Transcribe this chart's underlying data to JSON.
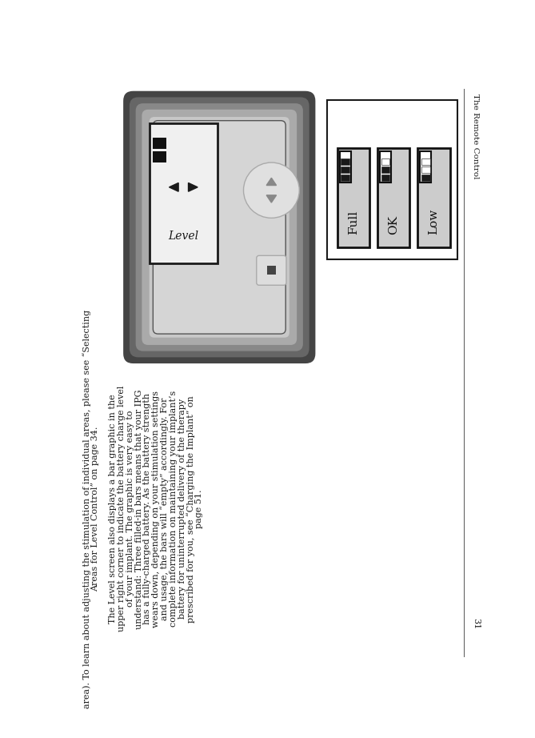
{
  "bg_color": "#ffffff",
  "page_number": "31",
  "header_text": "The Remote Control",
  "text_color": "#1a1a1a",
  "body_lines": [
    "area). To learn about adjusting the stimulation of individual areas, please see “Selecting",
    "Areas for Level Control” on page 34.",
    "",
    "The Level screen also displays a bar graphic in the",
    "upper right corner to indicate the battery charge level",
    "of your implant. The graphic is very easy to",
    "understand: Three filled-in bars means that your IPG",
    "has a fully-charged battery. As the battery strength",
    "wears down, depending on your stimulation settings",
    "and usage, the bars will “empty” accordingly. For",
    "complete information on maintaining your implant’s",
    "battery for uninterrupted delivery of the therapy",
    "prescribed for you, see “Charging the Implant” on",
    "page 51."
  ],
  "battery_labels": [
    "Full",
    "OK",
    "Low"
  ],
  "battery_filled": [
    3,
    2,
    1
  ],
  "light_gray": "#cccccc",
  "dark": "#1a1a1a",
  "white": "#ffffff",
  "line_color": "#555555",
  "border_color": "#222222",
  "device_outer1": "#6a6a6a",
  "device_outer2": "#909090",
  "device_inner": "#b8b8b8",
  "device_mid": "#d0d0d0",
  "screen_bg": "#ececec",
  "btn_color": "#dedede",
  "btn_dark": "#c0c0c0"
}
